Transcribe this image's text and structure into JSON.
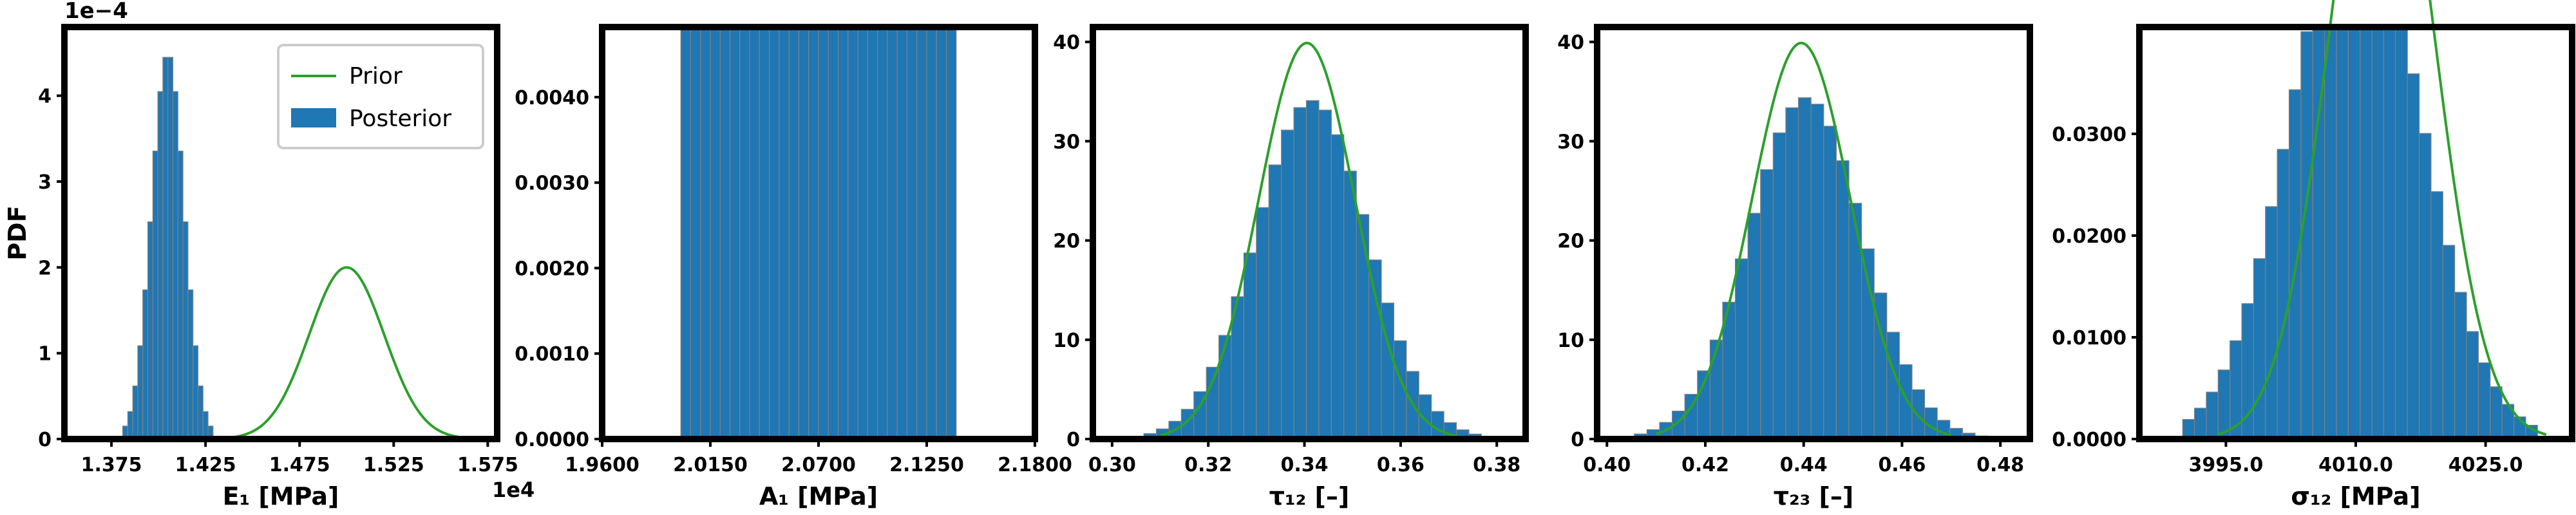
{
  "colors": {
    "posterior": "#1f77b4",
    "prior": "#2ca02c",
    "bin_edge": "#808080",
    "frame": "#000000"
  },
  "legend": {
    "prior_label": "Prior",
    "posterior_label": "Posterior"
  },
  "chart_data": [
    {
      "type": "bar",
      "xlabel": "E₁ [MPa]",
      "ylabel": "PDF",
      "y_offset_text": "1e−4",
      "x_offset_text": "1e4",
      "xlim": [
        1.35,
        1.58
      ],
      "ylim": [
        0,
        4.8
      ],
      "xticks": [
        1.375,
        1.425,
        1.475,
        1.525,
        1.575
      ],
      "xtick_labels": [
        "1.375",
        "1.425",
        "1.475",
        "1.525",
        "1.575"
      ],
      "yticks": [
        0,
        1,
        2,
        3,
        4
      ],
      "ytick_labels": [
        "0",
        "1",
        "2",
        "3",
        "4"
      ],
      "legend": "top-right",
      "posterior": {
        "mu": 1.405,
        "sigma": 0.0087,
        "bins": 18,
        "lo": 1.381,
        "hi": 1.429
      },
      "prior": {
        "mu": 1.5,
        "sigma": 0.02,
        "lo": 1.42,
        "hi": 1.58
      }
    },
    {
      "type": "bar",
      "xlabel": "A₁ [MPa]",
      "xlim": [
        1.96,
        2.18
      ],
      "ylim": [
        0,
        0.00482
      ],
      "xticks": [
        1.96,
        2.015,
        2.07,
        2.125,
        2.18
      ],
      "xtick_labels": [
        "1.9600",
        "2.0150",
        "2.0700",
        "2.1250",
        "2.1800"
      ],
      "yticks": [
        0,
        0.001,
        0.002,
        0.003,
        0.004
      ],
      "ytick_labels": [
        "0.0000",
        "0.0010",
        "0.0020",
        "0.0030",
        "0.0040"
      ],
      "posterior": {
        "mu": 2.069,
        "sigma": 0.0228,
        "bins": 28,
        "lo": 2.0,
        "hi": 2.14
      },
      "prior": {
        "mu": 2.07,
        "sigma": 0.023,
        "lo": 1.98,
        "hi": 2.16
      }
    },
    {
      "type": "bar",
      "xlabel": "τ₁₂ [–]",
      "xlim": [
        0.296,
        0.386
      ],
      "ylim": [
        0,
        41.5
      ],
      "xticks": [
        0.3,
        0.32,
        0.34,
        0.36,
        0.38
      ],
      "xtick_labels": [
        "0.30",
        "0.32",
        "0.34",
        "0.36",
        "0.38"
      ],
      "yticks": [
        0,
        10,
        20,
        30,
        40
      ],
      "ytick_labels": [
        "0",
        "10",
        "20",
        "30",
        "40"
      ],
      "posterior": {
        "mu": 0.3415,
        "sigma": 0.0117,
        "bins": 30,
        "lo": 0.304,
        "hi": 0.382
      },
      "prior": {
        "mu": 0.3405,
        "sigma": 0.01,
        "lo": 0.31,
        "hi": 0.372
      }
    },
    {
      "type": "bar",
      "xlabel": "τ₂₃ [–]",
      "xlim": [
        0.398,
        0.486
      ],
      "ylim": [
        0,
        41.5
      ],
      "xticks": [
        0.4,
        0.42,
        0.44,
        0.46,
        0.48
      ],
      "xtick_labels": [
        "0.40",
        "0.42",
        "0.44",
        "0.46",
        "0.48"
      ],
      "yticks": [
        0,
        10,
        20,
        30,
        40
      ],
      "ytick_labels": [
        "0",
        "10",
        "20",
        "30",
        "40"
      ],
      "posterior": {
        "mu": 0.4405,
        "sigma": 0.0116,
        "bins": 30,
        "lo": 0.403,
        "hi": 0.48
      },
      "prior": {
        "mu": 0.4395,
        "sigma": 0.01,
        "lo": 0.41,
        "hi": 0.47
      }
    },
    {
      "type": "bar",
      "xlabel": "σ₁₂ [MPa]",
      "xlim": [
        3985,
        4035
      ],
      "ylim": [
        0,
        0.0405
      ],
      "xticks": [
        3995,
        4010,
        4025
      ],
      "xtick_labels": [
        "3995.0",
        "4010.0",
        "4025.0"
      ],
      "yticks": [
        0,
        0.01,
        0.02,
        0.03
      ],
      "ytick_labels": [
        "0.0000",
        "0.0100",
        "0.0200",
        "0.0300"
      ],
      "posterior": {
        "mu": 4010,
        "sigma": 7.5,
        "bins": 30,
        "lo": 3990,
        "hi": 4031
      },
      "prior": {
        "mu": 4013,
        "sigma": 6,
        "lo": 3994,
        "hi": 4032
      }
    }
  ]
}
